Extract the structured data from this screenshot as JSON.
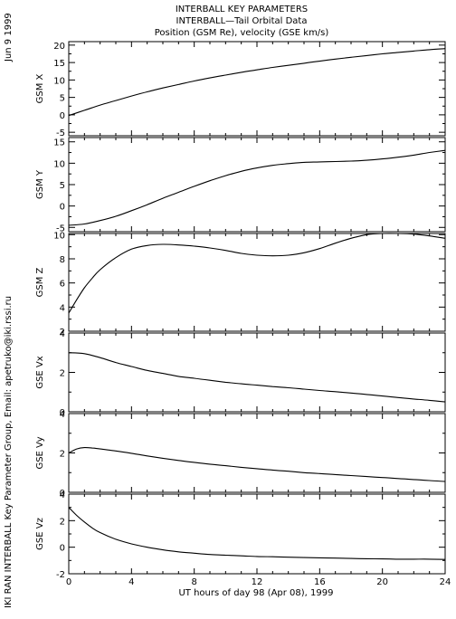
{
  "header": {
    "title_lines": [
      "INTERBALL KEY PARAMETERS",
      "INTERBALL—Tail Orbital Data",
      "Position (GSM Re), velocity (GSE km/s)"
    ],
    "date_stamp": "Jun  9 1999",
    "side_credit": "IKI RAN INTERBALL Key Parameter Group, Email: apetruko@iki.rssi.ru"
  },
  "chart_data": [
    {
      "type": "line",
      "ylabel": "GSM X",
      "ylim": [
        -6,
        21
      ],
      "yticks": [
        -5,
        0,
        5,
        10,
        15,
        20
      ],
      "x": [
        0,
        1,
        2,
        3,
        4,
        5,
        6,
        7,
        8,
        9,
        10,
        11,
        12,
        13,
        14,
        15,
        16,
        17,
        18,
        19,
        20,
        21,
        22,
        23,
        24
      ],
      "y": [
        -0.2,
        1.3,
        2.8,
        4.1,
        5.4,
        6.6,
        7.7,
        8.7,
        9.7,
        10.6,
        11.4,
        12.2,
        12.9,
        13.6,
        14.2,
        14.8,
        15.4,
        16.0,
        16.5,
        17.0,
        17.5,
        17.9,
        18.3,
        18.7,
        19.0
      ]
    },
    {
      "type": "line",
      "ylabel": "GSM Y",
      "ylim": [
        -6,
        16
      ],
      "yticks": [
        -5,
        0,
        5,
        10,
        15
      ],
      "x": [
        0,
        1,
        2,
        3,
        4,
        5,
        6,
        7,
        8,
        9,
        10,
        11,
        12,
        13,
        14,
        15,
        16,
        17,
        18,
        19,
        20,
        21,
        22,
        23,
        24
      ],
      "y": [
        -4.5,
        -4.2,
        -3.4,
        -2.4,
        -1.1,
        0.3,
        1.8,
        3.2,
        4.6,
        5.9,
        7.1,
        8.1,
        8.9,
        9.5,
        9.9,
        10.2,
        10.3,
        10.4,
        10.5,
        10.7,
        11.0,
        11.4,
        11.9,
        12.5,
        13.0
      ]
    },
    {
      "type": "line",
      "ylabel": "GSM Z",
      "ylim": [
        2,
        10.1
      ],
      "yticks": [
        2,
        4,
        6,
        8,
        10
      ],
      "x": [
        0,
        0.5,
        1,
        1.5,
        2,
        3,
        4,
        5,
        6,
        7,
        8,
        9,
        10,
        11,
        12,
        13,
        14,
        15,
        16,
        17,
        18,
        19,
        20,
        21,
        22,
        23,
        24
      ],
      "y": [
        3.5,
        4.6,
        5.6,
        6.4,
        7.1,
        8.1,
        8.8,
        9.1,
        9.2,
        9.15,
        9.05,
        8.9,
        8.7,
        8.45,
        8.3,
        8.25,
        8.3,
        8.5,
        8.85,
        9.3,
        9.7,
        10.0,
        10.1,
        10.1,
        10.05,
        9.9,
        9.7
      ]
    },
    {
      "type": "line",
      "ylabel": "GSE Vx",
      "ylim": [
        0,
        4
      ],
      "yticks": [
        0,
        2,
        4
      ],
      "x": [
        0,
        1,
        2,
        3,
        4,
        5,
        6,
        7,
        8,
        9,
        10,
        11,
        12,
        13,
        14,
        15,
        16,
        17,
        18,
        19,
        20,
        21,
        22,
        23,
        24
      ],
      "y": [
        3.0,
        2.95,
        2.75,
        2.5,
        2.3,
        2.1,
        1.95,
        1.8,
        1.7,
        1.6,
        1.5,
        1.42,
        1.35,
        1.28,
        1.22,
        1.15,
        1.08,
        1.02,
        0.95,
        0.88,
        0.8,
        0.72,
        0.65,
        0.58,
        0.5
      ]
    },
    {
      "type": "line",
      "ylabel": "GSE Vy",
      "ylim": [
        0,
        4
      ],
      "yticks": [
        0,
        2,
        4
      ],
      "x": [
        0,
        0.5,
        1,
        1.5,
        2,
        3,
        4,
        5,
        6,
        7,
        8,
        9,
        10,
        11,
        12,
        13,
        14,
        15,
        16,
        17,
        18,
        19,
        20,
        21,
        22,
        23,
        24
      ],
      "y": [
        2.0,
        2.2,
        2.27,
        2.25,
        2.2,
        2.1,
        1.98,
        1.85,
        1.73,
        1.62,
        1.52,
        1.43,
        1.35,
        1.27,
        1.2,
        1.13,
        1.07,
        1.0,
        0.95,
        0.9,
        0.85,
        0.8,
        0.75,
        0.7,
        0.65,
        0.6,
        0.55
      ]
    },
    {
      "type": "line",
      "ylabel": "GSE Vz",
      "ylim": [
        -2,
        4
      ],
      "yticks": [
        -2,
        0,
        2,
        4
      ],
      "x": [
        0,
        0.5,
        1,
        1.5,
        2,
        3,
        4,
        5,
        6,
        7,
        8,
        9,
        10,
        11,
        12,
        13,
        14,
        15,
        16,
        17,
        18,
        19,
        20,
        21,
        22,
        23,
        24
      ],
      "y": [
        3.0,
        2.4,
        1.9,
        1.45,
        1.1,
        0.6,
        0.25,
        0.0,
        -0.2,
        -0.35,
        -0.45,
        -0.55,
        -0.6,
        -0.65,
        -0.7,
        -0.72,
        -0.75,
        -0.78,
        -0.8,
        -0.82,
        -0.85,
        -0.87,
        -0.88,
        -0.9,
        -0.9,
        -0.9,
        -0.92
      ]
    }
  ],
  "x_axis": {
    "label": "UT hours of day  98 (Apr 08), 1999",
    "range": [
      0,
      24
    ],
    "tick_labels": [
      "0",
      "4",
      "8",
      "12",
      "16",
      "20",
      "24"
    ],
    "minor_step": 1
  }
}
